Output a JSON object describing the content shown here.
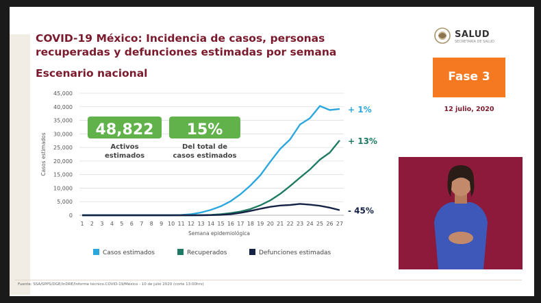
{
  "slide": {
    "title": "COVID-19 México: Incidencia de casos, personas recuperadas y defunciones estimadas por semana",
    "subtitle": "Escenario nacional",
    "logo_text": "SALUD",
    "logo_subtext": "SECRETARÍA DE SALUD",
    "phase_label": "Fase 3",
    "date": "12 julio, 2020",
    "footnote": "Fuente: SSA/SPPS/DGE/InDRE/Informe técnico.COVID-19/México - 10 de julio 2020 (corte 13:00hrs)"
  },
  "colors": {
    "title": "#7a1a2c",
    "phase_bg": "#f47920",
    "highlight_box": "#61b24b",
    "casos": "#2ba7dd",
    "recuperados": "#1f7a63",
    "defunciones": "#152245",
    "video_bg": "#8d1a3b"
  },
  "chart_data": {
    "type": "line",
    "xlabel": "Semana epidemiológica",
    "ylabel": "Casos estimados",
    "ylim": [
      0,
      45000
    ],
    "yticks": [
      "0",
      "5,000",
      "10,000",
      "15,000",
      "20,000",
      "25,000",
      "30,000",
      "35,000",
      "40,000",
      "45,000"
    ],
    "x": [
      1,
      2,
      3,
      4,
      5,
      6,
      7,
      8,
      9,
      10,
      11,
      12,
      13,
      14,
      15,
      16,
      17,
      18,
      19,
      20,
      21,
      22,
      23,
      24,
      25,
      26,
      27
    ],
    "series": [
      {
        "name": "Casos estimados",
        "color": "#2ba7dd",
        "values": [
          0,
          0,
          0,
          0,
          0,
          0,
          0,
          0,
          0,
          0,
          100,
          400,
          1000,
          2000,
          3300,
          5200,
          7800,
          11000,
          14800,
          19800,
          24500,
          28000,
          33500,
          35800,
          40300,
          38800,
          39200
        ]
      },
      {
        "name": "Recuperados",
        "color": "#1f7a63",
        "values": [
          0,
          0,
          0,
          0,
          0,
          0,
          0,
          0,
          0,
          0,
          0,
          0,
          50,
          150,
          400,
          800,
          1400,
          2300,
          3700,
          5500,
          7900,
          10800,
          13900,
          16900,
          20500,
          23100,
          27600
        ]
      },
      {
        "name": "Defunciones estimadas",
        "color": "#152245",
        "values": [
          0,
          0,
          0,
          0,
          0,
          0,
          0,
          0,
          0,
          0,
          0,
          0,
          0,
          40,
          150,
          400,
          900,
          1600,
          2400,
          3100,
          3600,
          3800,
          4200,
          3900,
          3500,
          2800,
          1900
        ]
      }
    ],
    "end_labels": [
      "+ 1%",
      "+ 13%",
      "- 45%"
    ],
    "boxes": [
      {
        "value": "48,822",
        "caption_line1": "Activos",
        "caption_line2": "estimados"
      },
      {
        "value": "15%",
        "caption_line1": "Del total de",
        "caption_line2": "casos estimados"
      }
    ],
    "grid": true,
    "legend_position": "bottom"
  }
}
